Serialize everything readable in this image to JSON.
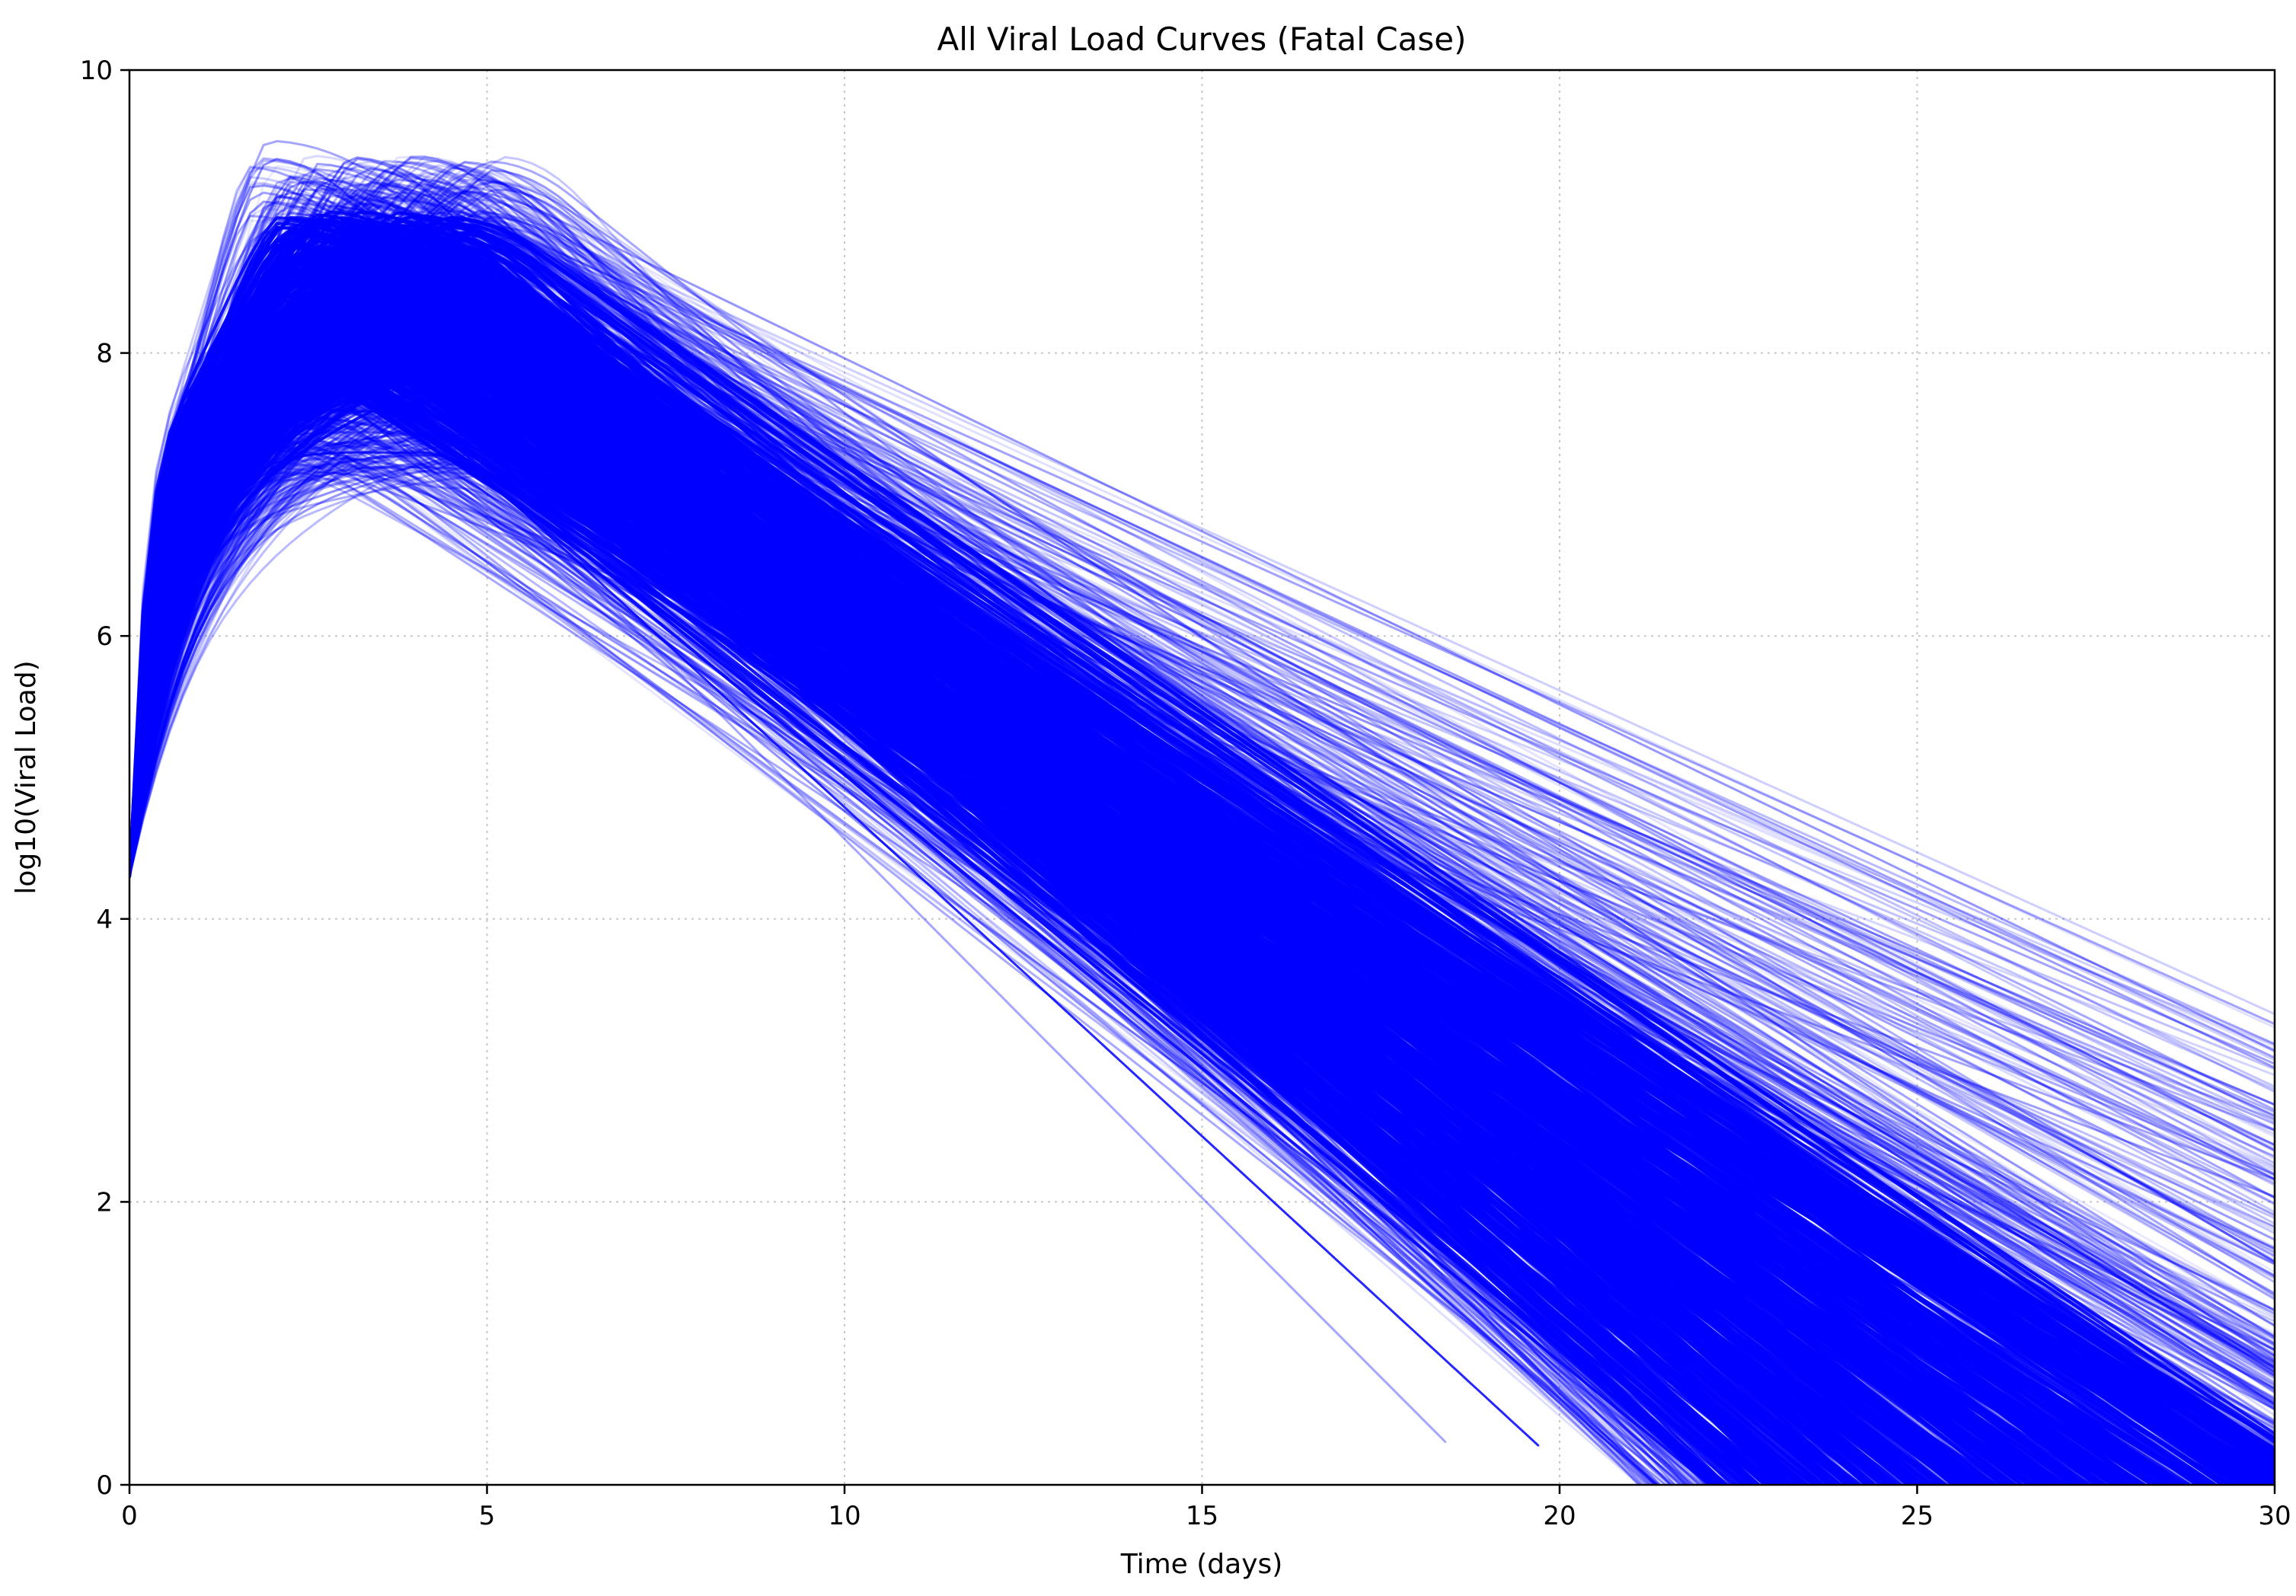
{
  "chart_data": {
    "type": "line",
    "title": "All Viral Load Curves (Fatal Case)",
    "xlabel": "Time (days)",
    "ylabel": "log10(Viral Load)",
    "xlim": [
      0,
      30
    ],
    "ylim": [
      0,
      10
    ],
    "xticks": [
      0,
      5,
      10,
      15,
      20,
      25,
      30
    ],
    "yticks": [
      0,
      2,
      4,
      6,
      8,
      10
    ],
    "grid": true,
    "line_color": "#0000ff",
    "curve_model": "log10 viral load vs. time: rise from ~4.3 at day 0 to a peak of ~7.0–9.5 around days 1.5–5, then roughly linear decline",
    "representative_series": [
      {
        "peak_day": 1.9,
        "peak": 9.5,
        "end_day": 30,
        "end_value": 2.5
      },
      {
        "peak_day": 2.5,
        "peak": 9.3,
        "end_day": 30,
        "end_value": 2.0
      },
      {
        "peak_day": 3.5,
        "peak": 9.2,
        "end_day": 30,
        "end_value": 1.4
      },
      {
        "peak_day": 4.5,
        "peak": 8.9,
        "end_day": 30,
        "end_value": 0.6
      },
      {
        "peak_day": 4.0,
        "peak": 7.3,
        "end_day": 19.7,
        "end_value": 0.0
      },
      {
        "peak_day": 4.5,
        "peak": 7.05,
        "end_day": 18.4,
        "end_value": 0.0
      },
      {
        "peak_day": 3.0,
        "peak": 8.0,
        "end_day": 21.5,
        "end_value": 0.0
      },
      {
        "peak_day": 3.0,
        "peak": 8.5,
        "end_day": 26.0,
        "end_value": 0.0
      }
    ]
  }
}
